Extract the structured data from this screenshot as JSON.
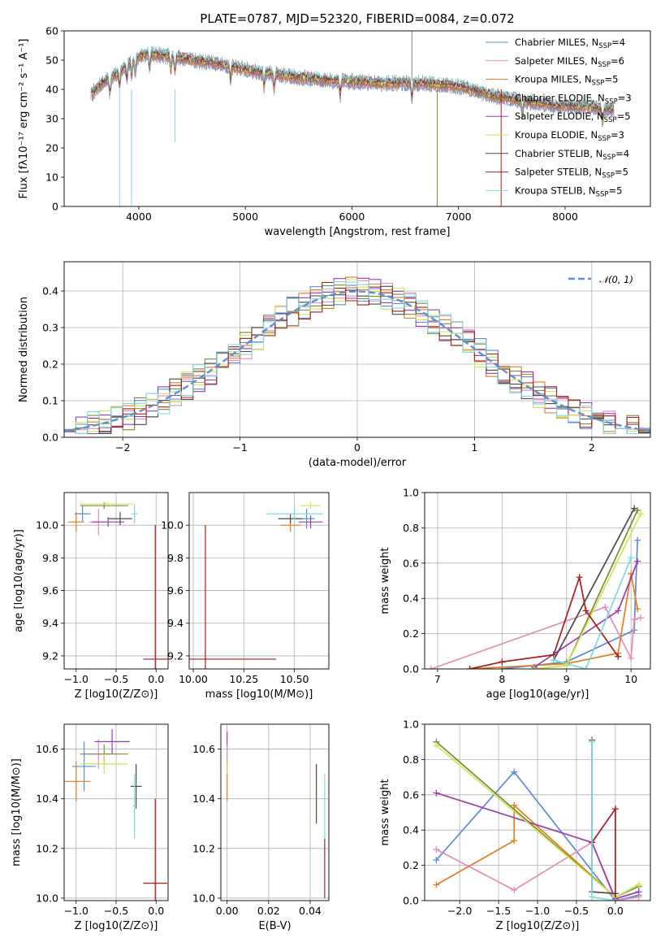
{
  "title": "PLATE=0787, MJD=52320, FIBERID=0084, z=0.072",
  "colors": {
    "Chabrier MILES": "#5b8bd8",
    "Salpeter MILES": "#e58cbc",
    "Kroupa MILES": "#e07f22",
    "Chabrier ELODIE": "#7a8a3a",
    "Salpeter ELODIE": "#9a3db0",
    "Kroupa ELODIE": "#cde850",
    "Chabrier STELIB": "#4a4a4a",
    "Salpeter STELIB": "#a81c1c",
    "Kroupa STELIB": "#7fd8e0",
    "N01": "#5b8fd6"
  },
  "spectrum_legend": [
    {
      "name": "Chabrier MILES",
      "n": "4"
    },
    {
      "name": "Salpeter MILES",
      "n": "6"
    },
    {
      "name": "Kroupa MILES",
      "n": "5"
    },
    {
      "name": "Chabrier ELODIE",
      "n": "3"
    },
    {
      "name": "Salpeter ELODIE",
      "n": "5"
    },
    {
      "name": "Kroupa ELODIE",
      "n": "3"
    },
    {
      "name": "Chabrier STELIB",
      "n": "4"
    },
    {
      "name": "Salpeter STELIB",
      "n": "5"
    },
    {
      "name": "Kroupa STELIB",
      "n": "5"
    }
  ],
  "nssp_label": "N",
  "nssp_sub": "SSP",
  "chart_data": [
    {
      "type": "line",
      "name": "spectrum",
      "title": "PLATE=0787, MJD=52320, FIBERID=0084, z=0.072",
      "xlabel": "wavelength [Angstrom, rest frame]",
      "ylabel": "Flux [fλ10⁻¹⁷ erg cm⁻² s⁻¹ A⁻¹]",
      "xlim": [
        3300,
        8800
      ],
      "ylim": [
        0,
        60
      ],
      "xticks": [
        4000,
        5000,
        6000,
        7000,
        8000
      ],
      "yticks": [
        0,
        10,
        20,
        30,
        40,
        50,
        60
      ],
      "continuum": [
        [
          3550,
          38
        ],
        [
          3650,
          42
        ],
        [
          3750,
          44
        ],
        [
          3850,
          47
        ],
        [
          3950,
          50
        ],
        [
          4050,
          52
        ],
        [
          4150,
          52
        ],
        [
          4250,
          51.5
        ],
        [
          4350,
          51
        ],
        [
          4500,
          50
        ],
        [
          4700,
          49
        ],
        [
          4900,
          47.5
        ],
        [
          5100,
          46
        ],
        [
          5300,
          45
        ],
        [
          5500,
          44
        ],
        [
          5800,
          43
        ],
        [
          6100,
          42.5
        ],
        [
          6400,
          42
        ],
        [
          6700,
          42
        ],
        [
          7000,
          41
        ],
        [
          7300,
          38
        ],
        [
          7600,
          36
        ],
        [
          7900,
          34.5
        ],
        [
          8200,
          34
        ],
        [
          8450,
          33
        ]
      ],
      "absorption_lines": [
        3730,
        3820,
        3889,
        3933,
        3968,
        4102,
        4300,
        4340,
        4861,
        5175,
        5270,
        5890,
        6563,
        7600,
        8350
      ],
      "features": [
        {
          "x": 3820,
          "y_low": 0,
          "note": "dip"
        },
        {
          "x": 3933,
          "y_low": 0,
          "note": "dip"
        },
        {
          "x": 4340,
          "y_low": 22,
          "note": "dip"
        },
        {
          "x": 6563,
          "y_high": 60,
          "note": "emission"
        },
        {
          "x": 6800,
          "y_low": 0,
          "note": "spike"
        },
        {
          "x": 7400,
          "y_low": 0,
          "note": "drop"
        }
      ]
    },
    {
      "type": "line",
      "name": "residual-histogram",
      "xlabel": "(data-model)/error",
      "ylabel": "Normed distribution",
      "xlim": [
        -2.5,
        2.5
      ],
      "ylim": [
        0,
        0.48
      ],
      "xticks": [
        -2,
        -1,
        0,
        1,
        2
      ],
      "yticks": [
        0.0,
        0.1,
        0.2,
        0.3,
        0.4
      ],
      "legend": "𝒩(0, 1)",
      "bin_width": 0.1,
      "reference_curve": "normal(0,1)"
    },
    {
      "type": "scatter",
      "name": "age-vs-Z",
      "xlabel": "Z [log10(Z/Z⊙)]",
      "ylabel": "age  [log10(age/yr)]",
      "xlim": [
        -1.15,
        0.15
      ],
      "ylim": [
        9.12,
        10.2
      ],
      "xticks": [
        -1.0,
        -0.5,
        0.0
      ],
      "yticks": [
        9.2,
        9.4,
        9.6,
        9.8,
        10.0
      ],
      "points": [
        {
          "series": "Chabrier MILES",
          "x": -0.92,
          "y": 10.07,
          "ex": 0.1,
          "ey": 0.05
        },
        {
          "series": "Salpeter MILES",
          "x": -0.72,
          "y": 10.02,
          "ex": 0.12,
          "ey": 0.08
        },
        {
          "series": "Kroupa MILES",
          "x": -1.0,
          "y": 10.02,
          "ex": 0.1,
          "ey": 0.06
        },
        {
          "series": "Chabrier ELODIE",
          "x": -0.65,
          "y": 10.12,
          "ex": 0.3,
          "ey": 0.02
        },
        {
          "series": "Salpeter ELODIE",
          "x": -0.6,
          "y": 10.02,
          "ex": 0.2,
          "ey": 0.03
        },
        {
          "series": "Kroupa ELODIE",
          "x": -0.62,
          "y": 10.13,
          "ex": 0.33,
          "ey": 0.01
        },
        {
          "series": "Chabrier STELIB",
          "x": -0.45,
          "y": 10.04,
          "ex": 0.15,
          "ey": 0.04
        },
        {
          "series": "Salpeter STELIB",
          "x": -0.01,
          "y": 9.18,
          "ex": 0.15,
          "ey": 0.82
        },
        {
          "series": "Kroupa STELIB",
          "x": -0.27,
          "y": 10.07,
          "ex": 0.04,
          "ey": 0.06
        }
      ]
    },
    {
      "type": "scatter",
      "name": "age-vs-mass",
      "xlabel": "mass [log10(M/M⊙)]",
      "xlim": [
        9.98,
        10.67
      ],
      "ylim": [
        9.12,
        10.2
      ],
      "xticks": [
        10.0,
        10.25,
        10.5
      ],
      "yticks": [
        9.2,
        9.4,
        9.6,
        9.8,
        10.0
      ],
      "points": [
        {
          "series": "Chabrier MILES",
          "x": 10.56,
          "y": 10.04,
          "ex": 0.04,
          "ey": 0.06
        },
        {
          "series": "Kroupa MILES",
          "x": 10.48,
          "y": 10.0,
          "ex": 0.05,
          "ey": 0.04
        },
        {
          "series": "Salpeter ELODIE",
          "x": 10.58,
          "y": 10.02,
          "ex": 0.06,
          "ey": 0.04
        },
        {
          "series": "Kroupa ELODIE",
          "x": 10.58,
          "y": 10.12,
          "ex": 0.05,
          "ey": 0.02
        },
        {
          "series": "Chabrier STELIB",
          "x": 10.48,
          "y": 10.04,
          "ex": 0.06,
          "ey": 0.03
        },
        {
          "series": "Salpeter STELIB",
          "x": 10.06,
          "y": 9.18,
          "ex": 0.35,
          "ey": 0.82
        },
        {
          "series": "Kroupa STELIB",
          "x": 10.5,
          "y": 10.07,
          "ex": 0.14,
          "ey": 0.06
        }
      ]
    },
    {
      "type": "line",
      "name": "mass-weight-vs-age",
      "xlabel": "age  [log10(age/yr)]",
      "ylabel": "mass weight",
      "xlim": [
        6.8,
        10.3
      ],
      "ylim": [
        0,
        1.0
      ],
      "xticks": [
        7,
        8,
        9,
        10
      ],
      "yticks": [
        0.0,
        0.2,
        0.4,
        0.6,
        0.8,
        1.0
      ],
      "series": [
        {
          "series": "Chabrier MILES",
          "points": [
            [
              8.0,
              0.0
            ],
            [
              9.0,
              0.04
            ],
            [
              10.05,
              0.22
            ],
            [
              10.1,
              0.73
            ]
          ]
        },
        {
          "series": "Salpeter MILES",
          "points": [
            [
              6.9,
              0.0
            ],
            [
              9.6,
              0.35
            ],
            [
              10.0,
              0.06
            ],
            [
              10.05,
              0.28
            ],
            [
              10.15,
              0.29
            ]
          ]
        },
        {
          "series": "Kroupa MILES",
          "points": [
            [
              7.5,
              0.0
            ],
            [
              9.0,
              0.03
            ],
            [
              9.8,
              0.09
            ],
            [
              10.0,
              0.54
            ],
            [
              10.1,
              0.34
            ]
          ]
        },
        {
          "series": "Chabrier ELODIE",
          "points": [
            [
              8.5,
              0.0
            ],
            [
              9.0,
              0.02
            ],
            [
              10.1,
              0.9
            ]
          ]
        },
        {
          "series": "Salpeter ELODIE",
          "points": [
            [
              8.5,
              0.01
            ],
            [
              9.8,
              0.33
            ],
            [
              10.1,
              0.61
            ]
          ]
        },
        {
          "series": "Kroupa ELODIE",
          "points": [
            [
              8.5,
              0.0
            ],
            [
              9.0,
              0.02
            ],
            [
              10.15,
              0.88
            ]
          ]
        },
        {
          "series": "Chabrier STELIB",
          "points": [
            [
              8.8,
              0.05
            ],
            [
              10.05,
              0.91
            ]
          ]
        },
        {
          "series": "Salpeter STELIB",
          "points": [
            [
              7.5,
              0.0
            ],
            [
              8.0,
              0.04
            ],
            [
              8.8,
              0.08
            ],
            [
              9.2,
              0.52
            ],
            [
              9.3,
              0.33
            ],
            [
              9.8,
              0.07
            ]
          ]
        },
        {
          "series": "Kroupa STELIB",
          "points": [
            [
              8.8,
              0.05
            ],
            [
              9.3,
              0.0
            ],
            [
              10.0,
              0.63
            ]
          ]
        }
      ]
    },
    {
      "type": "scatter",
      "name": "mass-vs-Z",
      "xlabel": "Z [log10(Z/Z⊙)]",
      "ylabel": "mass [log10(M/M⊙)]",
      "xlim": [
        -1.15,
        0.15
      ],
      "ylim": [
        9.99,
        10.7
      ],
      "xticks": [
        -1.0,
        -0.5,
        0.0
      ],
      "yticks": [
        10.0,
        10.2,
        10.4,
        10.6
      ],
      "points": [
        {
          "series": "Chabrier MILES",
          "x": -0.9,
          "y": 10.53,
          "ex": 0.15,
          "ey": 0.1
        },
        {
          "series": "Salpeter MILES",
          "x": -0.72,
          "y": 10.58,
          "ex": 0.15,
          "ey": 0.06
        },
        {
          "series": "Kroupa MILES",
          "x": -1.0,
          "y": 10.47,
          "ex": 0.18,
          "ey": 0.08
        },
        {
          "series": "Chabrier ELODIE",
          "x": -0.65,
          "y": 10.58,
          "ex": 0.3,
          "ey": 0.04
        },
        {
          "series": "Salpeter ELODIE",
          "x": -0.55,
          "y": 10.63,
          "ex": 0.22,
          "ey": 0.05
        },
        {
          "series": "Kroupa ELODIE",
          "x": -0.65,
          "y": 10.54,
          "ex": 0.3,
          "ey": 0.04
        },
        {
          "series": "Chabrier STELIB",
          "x": -0.25,
          "y": 10.45,
          "ex": 0.07,
          "ey": 0.09
        },
        {
          "series": "Salpeter STELIB",
          "x": -0.01,
          "y": 10.06,
          "ex": 0.15,
          "ey": 0.34
        },
        {
          "series": "Kroupa STELIB",
          "x": -0.27,
          "y": 10.37,
          "ex": 0.02,
          "ey": 0.13
        }
      ]
    },
    {
      "type": "scatter",
      "name": "mass-vs-EBV",
      "xlabel": "E(B-V)",
      "xlim": [
        -0.003,
        0.049
      ],
      "ylim": [
        9.99,
        10.7
      ],
      "xticks": [
        0.0,
        0.02,
        0.04
      ],
      "yticks": [
        10.0,
        10.2,
        10.4,
        10.6
      ],
      "points": [
        {
          "series": "Salpeter ELODIE",
          "x": 0.0,
          "y": 10.62,
          "ey": 0.05
        },
        {
          "series": "Kroupa MILES",
          "x": 0.0,
          "y": 10.47,
          "ey": 0.08
        },
        {
          "series": "Kroupa ELODIE",
          "x": 0.0,
          "y": 10.55,
          "ey": 0.05
        },
        {
          "series": "Salpeter MILES",
          "x": 0.0,
          "y": 10.58,
          "ey": 0.04
        },
        {
          "series": "Chabrier STELIB",
          "x": 0.043,
          "y": 10.42,
          "ey": 0.12
        },
        {
          "series": "Salpeter STELIB",
          "x": 0.047,
          "y": 10.12,
          "ey": 0.12
        },
        {
          "series": "Kroupa STELIB",
          "x": 0.047,
          "y": 10.37,
          "ey": 0.13
        }
      ]
    },
    {
      "type": "line",
      "name": "mass-weight-vs-Z",
      "xlabel": "Z [log10(Z/Z⊙)]",
      "ylabel": "mass weight",
      "xlim": [
        -2.45,
        0.45
      ],
      "ylim": [
        0,
        1.0
      ],
      "xticks": [
        -2.0,
        -1.5,
        -1.0,
        -0.5,
        0.0
      ],
      "yticks": [
        0.0,
        0.2,
        0.4,
        0.6,
        0.8,
        1.0
      ],
      "series": [
        {
          "series": "Chabrier MILES",
          "points": [
            [
              -2.3,
              0.23
            ],
            [
              -1.3,
              0.73
            ],
            [
              0.0,
              0.0
            ],
            [
              0.3,
              0.03
            ]
          ]
        },
        {
          "series": "Salpeter MILES",
          "points": [
            [
              -2.3,
              0.29
            ],
            [
              -1.3,
              0.06
            ],
            [
              -0.3,
              0.33
            ],
            [
              0.0,
              0.0
            ],
            [
              0.3,
              0.02
            ]
          ]
        },
        {
          "series": "Kroupa MILES",
          "points": [
            [
              -2.3,
              0.09
            ],
            [
              -1.3,
              0.34
            ],
            [
              -1.3,
              0.54
            ],
            [
              0.0,
              0.02
            ],
            [
              0.3,
              0.09
            ]
          ]
        },
        {
          "series": "Chabrier ELODIE",
          "points": [
            [
              -2.3,
              0.9
            ],
            [
              0.0,
              0.02
            ],
            [
              0.3,
              0.08
            ]
          ]
        },
        {
          "series": "Salpeter ELODIE",
          "points": [
            [
              -2.3,
              0.61
            ],
            [
              -0.3,
              0.33
            ],
            [
              0.0,
              0.01
            ],
            [
              0.3,
              0.05
            ]
          ]
        },
        {
          "series": "Kroupa ELODIE",
          "points": [
            [
              -2.3,
              0.88
            ],
            [
              0.0,
              0.02
            ],
            [
              0.3,
              0.09
            ]
          ]
        },
        {
          "series": "Chabrier STELIB",
          "points": [
            [
              -0.3,
              0.91
            ],
            [
              -0.3,
              0.05
            ],
            [
              0.0,
              0.04
            ]
          ]
        },
        {
          "series": "Salpeter STELIB",
          "points": [
            [
              -0.3,
              0.33
            ],
            [
              0.0,
              0.52
            ],
            [
              0.0,
              0.0
            ]
          ]
        },
        {
          "series": "Kroupa STELIB",
          "points": [
            [
              -0.3,
              0.9
            ],
            [
              -0.3,
              0.02
            ],
            [
              0.0,
              0.0
            ]
          ]
        }
      ]
    }
  ]
}
